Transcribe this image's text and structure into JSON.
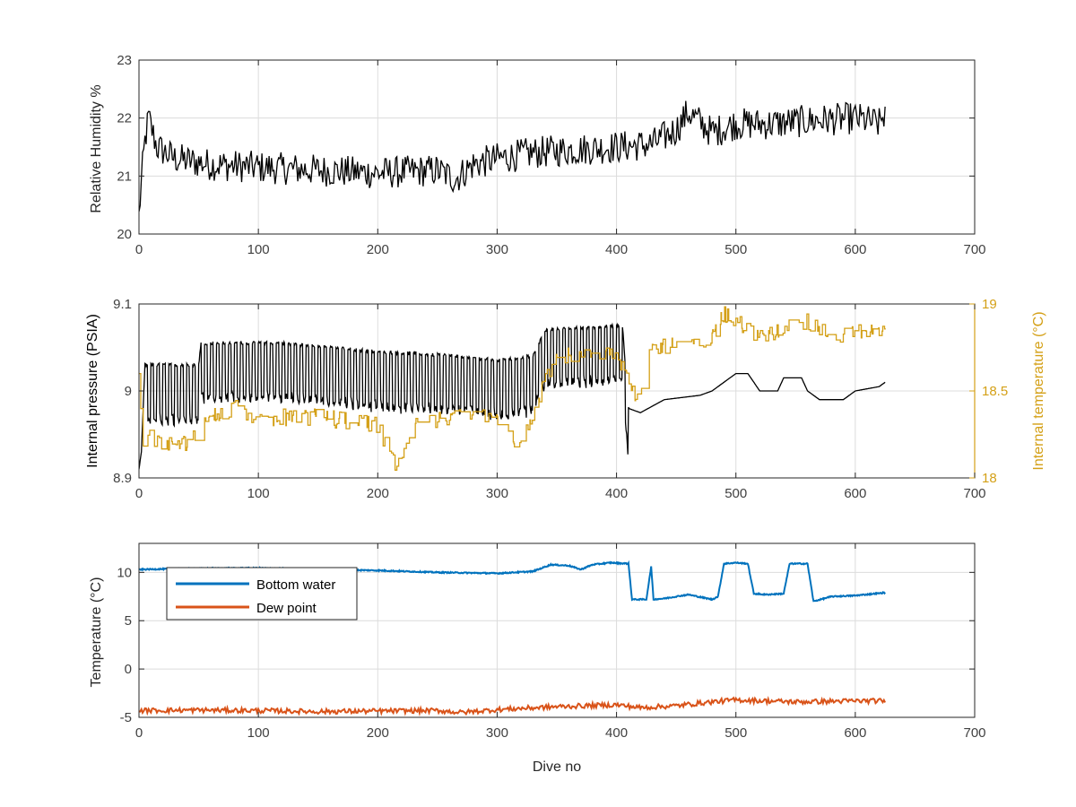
{
  "figure": {
    "xlabel": "Dive no"
  },
  "colors": {
    "black": "#000000",
    "orange": "#D4A017",
    "blue": "#0072BD",
    "red": "#D95319",
    "grid": "#DCDCDC",
    "axis": "#262626",
    "tick_label": "#404040"
  },
  "chart_data": [
    {
      "type": "line",
      "id": "rh",
      "ylabel": "Relative Humidity %",
      "xlim": [
        0,
        700
      ],
      "ylim": [
        20,
        23
      ],
      "xticks": [
        0,
        100,
        200,
        300,
        400,
        500,
        600,
        700
      ],
      "yticks": [
        20,
        21,
        22,
        23
      ],
      "grid": true,
      "series": [
        {
          "color": "#000000",
          "noise": 0.28,
          "points": [
            [
              0,
              20.3
            ],
            [
              2,
              20.9
            ],
            [
              5,
              21.6
            ],
            [
              8,
              22.0
            ],
            [
              15,
              21.5
            ],
            [
              30,
              21.3
            ],
            [
              60,
              21.2
            ],
            [
              100,
              21.15
            ],
            [
              150,
              21.1
            ],
            [
              200,
              21.05
            ],
            [
              250,
              21.1
            ],
            [
              265,
              20.95
            ],
            [
              280,
              21.2
            ],
            [
              300,
              21.3
            ],
            [
              330,
              21.4
            ],
            [
              360,
              21.45
            ],
            [
              400,
              21.5
            ],
            [
              430,
              21.55
            ],
            [
              450,
              21.8
            ],
            [
              460,
              22.1
            ],
            [
              480,
              21.75
            ],
            [
              500,
              21.9
            ],
            [
              530,
              21.9
            ],
            [
              560,
              21.95
            ],
            [
              600,
              22.0
            ],
            [
              620,
              21.9
            ],
            [
              625,
              22.1
            ]
          ]
        }
      ]
    },
    {
      "type": "line",
      "id": "pressure",
      "ylabel": "Internal pressure (PSIA)",
      "ylabel_right": "Internal temperature (°C)",
      "xlim": [
        0,
        700
      ],
      "ylim": [
        8.9,
        9.1
      ],
      "ylim_right": [
        18,
        19
      ],
      "xticks": [
        0,
        100,
        200,
        300,
        400,
        500,
        600,
        700
      ],
      "yticks": [
        8.9,
        9,
        9.1
      ],
      "yticks_right": [
        18,
        18.5,
        19
      ],
      "grid": true,
      "series": [
        {
          "axis": "left",
          "color": "#000000",
          "oscillation": {
            "from": 5,
            "to": 410,
            "period": 5,
            "low_offset": -0.065
          },
          "points": [
            [
              0,
              8.91
            ],
            [
              2,
              8.93
            ],
            [
              5,
              9.03
            ],
            [
              50,
              9.03
            ],
            [
              52,
              9.055
            ],
            [
              120,
              9.055
            ],
            [
              200,
              9.045
            ],
            [
              270,
              9.04
            ],
            [
              300,
              9.035
            ],
            [
              330,
              9.04
            ],
            [
              340,
              9.07
            ],
            [
              400,
              9.075
            ],
            [
              405,
              9.075
            ],
            [
              410,
              8.98
            ],
            [
              420,
              8.975
            ],
            [
              440,
              8.99
            ],
            [
              470,
              8.995
            ],
            [
              480,
              9.0
            ],
            [
              490,
              9.01
            ],
            [
              500,
              9.02
            ],
            [
              510,
              9.02
            ],
            [
              520,
              9.0
            ],
            [
              535,
              9.0
            ],
            [
              540,
              9.015
            ],
            [
              555,
              9.015
            ],
            [
              560,
              9.0
            ],
            [
              570,
              8.99
            ],
            [
              590,
              8.99
            ],
            [
              600,
              9.0
            ],
            [
              620,
              9.005
            ],
            [
              625,
              9.01
            ]
          ]
        },
        {
          "axis": "right",
          "color": "#D4A017",
          "step_noise": 0.05,
          "points": [
            [
              0,
              18.6
            ],
            [
              3,
              18.2
            ],
            [
              8,
              18.25
            ],
            [
              20,
              18.2
            ],
            [
              40,
              18.2
            ],
            [
              60,
              18.35
            ],
            [
              80,
              18.4
            ],
            [
              100,
              18.35
            ],
            [
              150,
              18.35
            ],
            [
              200,
              18.3
            ],
            [
              215,
              18.05
            ],
            [
              230,
              18.3
            ],
            [
              260,
              18.35
            ],
            [
              300,
              18.35
            ],
            [
              315,
              18.15
            ],
            [
              330,
              18.35
            ],
            [
              340,
              18.55
            ],
            [
              350,
              18.7
            ],
            [
              380,
              18.7
            ],
            [
              395,
              18.75
            ],
            [
              405,
              18.65
            ],
            [
              415,
              18.45
            ],
            [
              420,
              18.5
            ],
            [
              430,
              18.75
            ],
            [
              440,
              18.75
            ],
            [
              455,
              18.8
            ],
            [
              480,
              18.8
            ],
            [
              490,
              18.95
            ],
            [
              500,
              18.9
            ],
            [
              520,
              18.8
            ],
            [
              540,
              18.85
            ],
            [
              560,
              18.9
            ],
            [
              580,
              18.8
            ],
            [
              600,
              18.85
            ],
            [
              625,
              18.85
            ]
          ]
        }
      ]
    },
    {
      "type": "line",
      "id": "temperature",
      "ylabel": "Temperature (°C)",
      "xlabel": "Dive no",
      "xlim": [
        0,
        700
      ],
      "ylim": [
        -5,
        13
      ],
      "xticks": [
        0,
        100,
        200,
        300,
        400,
        500,
        600,
        700
      ],
      "yticks": [
        -5,
        0,
        5,
        10
      ],
      "grid": true,
      "legend": "top-left",
      "series": [
        {
          "name": "Bottom water",
          "color": "#0072BD",
          "points": [
            [
              0,
              10.3
            ],
            [
              50,
              10.4
            ],
            [
              100,
              10.45
            ],
            [
              150,
              10.3
            ],
            [
              200,
              10.2
            ],
            [
              250,
              10.0
            ],
            [
              300,
              9.9
            ],
            [
              330,
              10.1
            ],
            [
              345,
              10.8
            ],
            [
              360,
              10.7
            ],
            [
              370,
              10.3
            ],
            [
              380,
              10.8
            ],
            [
              395,
              11.0
            ],
            [
              410,
              10.9
            ],
            [
              413,
              7.2
            ],
            [
              425,
              7.2
            ],
            [
              429,
              10.6
            ],
            [
              431,
              7.2
            ],
            [
              440,
              7.3
            ],
            [
              460,
              7.7
            ],
            [
              480,
              7.2
            ],
            [
              485,
              7.5
            ],
            [
              490,
              10.9
            ],
            [
              500,
              11.0
            ],
            [
              510,
              10.9
            ],
            [
              515,
              7.8
            ],
            [
              525,
              7.7
            ],
            [
              540,
              7.8
            ],
            [
              545,
              10.9
            ],
            [
              560,
              10.9
            ],
            [
              565,
              7.0
            ],
            [
              580,
              7.5
            ],
            [
              600,
              7.6
            ],
            [
              625,
              7.9
            ]
          ]
        },
        {
          "name": "Dew point",
          "color": "#D95319",
          "noise": 0.25,
          "points": [
            [
              0,
              -4.3
            ],
            [
              50,
              -4.25
            ],
            [
              100,
              -4.3
            ],
            [
              150,
              -4.4
            ],
            [
              200,
              -4.35
            ],
            [
              250,
              -4.3
            ],
            [
              270,
              -4.5
            ],
            [
              300,
              -4.2
            ],
            [
              350,
              -3.9
            ],
            [
              400,
              -3.7
            ],
            [
              420,
              -4.0
            ],
            [
              450,
              -3.8
            ],
            [
              480,
              -3.4
            ],
            [
              500,
              -3.2
            ],
            [
              550,
              -3.4
            ],
            [
              600,
              -3.3
            ],
            [
              625,
              -3.3
            ]
          ]
        }
      ]
    }
  ]
}
